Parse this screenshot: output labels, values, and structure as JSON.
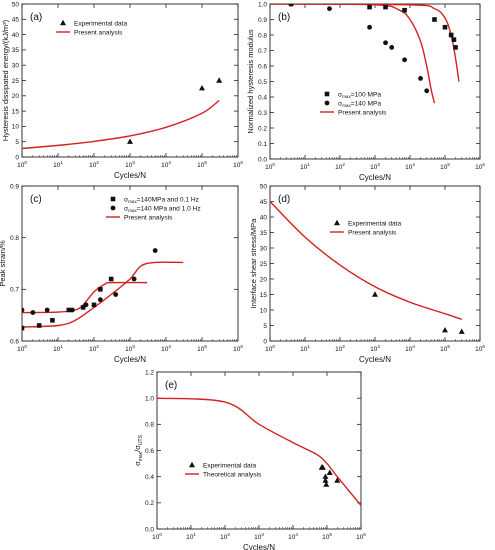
{
  "figure": {
    "panels": [
      "(a)",
      "(b)",
      "(c)",
      "(d)",
      "(e)"
    ]
  },
  "colors": {
    "theory": "#d42020",
    "marker": "#111111",
    "axis": "#222222"
  },
  "chart_data": [
    {
      "id": "a",
      "panel_label": "(a)",
      "type": "scatter",
      "xlabel": "Cycles/N",
      "ylabel": "Hysteresis dissipated energy/(kJ/m³)",
      "xscale": "log",
      "xlim": [
        1,
        1000000
      ],
      "ylim": [
        0,
        50
      ],
      "xticks": [
        1,
        10,
        100,
        1000,
        10000,
        100000,
        1000000
      ],
      "yticks": [
        0,
        5,
        10,
        15,
        20,
        25,
        30,
        35,
        40,
        45,
        50
      ],
      "legend_position": "top-left",
      "series": [
        {
          "name": "Experimental data",
          "kind": "scatter",
          "marker": "triangle",
          "x": [
            1000,
            100000,
            300000
          ],
          "y": [
            5,
            22.5,
            25
          ]
        },
        {
          "name": "Present analysis",
          "kind": "line",
          "x": [
            1,
            10,
            100,
            1000,
            10000,
            100000,
            300000
          ],
          "y": [
            2.8,
            3.8,
            5.1,
            6.9,
            9.7,
            14.3,
            18.5
          ]
        }
      ]
    },
    {
      "id": "b",
      "panel_label": "(b)",
      "type": "scatter",
      "xlabel": "Cycles/N",
      "ylabel": "Normalized hysteresis modulus",
      "xscale": "log",
      "xlim": [
        1,
        1000000
      ],
      "ylim": [
        0,
        1.0
      ],
      "xticks": [
        1,
        10,
        100,
        1000,
        10000,
        100000,
        1000000
      ],
      "yticks": [
        0,
        0.1,
        0.2,
        0.3,
        0.4,
        0.5,
        0.6,
        0.7,
        0.8,
        0.9,
        1.0
      ],
      "legend_position": "lower-center",
      "series": [
        {
          "name": "σmax=100 MPa",
          "kind": "scatter",
          "marker": "square",
          "x": [
            4,
            700,
            2000,
            7000,
            50000,
            100000,
            150000,
            180000,
            200000
          ],
          "y": [
            1.0,
            0.98,
            0.98,
            0.96,
            0.9,
            0.85,
            0.8,
            0.77,
            0.72
          ]
        },
        {
          "name": "σmax=140 MPa",
          "kind": "scatter",
          "marker": "circle",
          "x": [
            4,
            50,
            700,
            2000,
            3000,
            7000,
            20000,
            30000
          ],
          "y": [
            1.0,
            0.97,
            0.85,
            0.75,
            0.72,
            0.64,
            0.52,
            0.44
          ]
        },
        {
          "name": "Present analysis",
          "kind": "line",
          "x": [
            1,
            1000,
            5000,
            10000,
            20000,
            30000,
            40000,
            50000
          ],
          "y": [
            1.0,
            0.995,
            0.96,
            0.9,
            0.76,
            0.6,
            0.45,
            0.36
          ]
        },
        {
          "name": "",
          "kind": "line",
          "x": [
            1,
            10000,
            50000,
            100000,
            150000,
            200000,
            250000
          ],
          "y": [
            1.0,
            0.995,
            0.97,
            0.91,
            0.8,
            0.65,
            0.5
          ]
        }
      ]
    },
    {
      "id": "c",
      "panel_label": "(c)",
      "type": "scatter",
      "xlabel": "Cycles/N",
      "ylabel": "Peak strain/%",
      "xscale": "log",
      "xlim": [
        1,
        1000000
      ],
      "ylim": [
        0.6,
        0.9
      ],
      "xticks": [
        1,
        10,
        100,
        1000,
        10000,
        100000,
        1000000
      ],
      "yticks": [
        0.6,
        0.7,
        0.8,
        0.9
      ],
      "legend_position": "top-right",
      "series": [
        {
          "name": "σmax=140MPa and 0.1 Hz",
          "kind": "scatter",
          "marker": "square",
          "x": [
            1,
            3,
            7,
            20,
            50,
            100,
            150,
            300
          ],
          "y": [
            0.625,
            0.63,
            0.64,
            0.66,
            0.665,
            0.67,
            0.7,
            0.72
          ]
        },
        {
          "name": "σmax=140 MPa and 1.0 Hz",
          "kind": "scatter",
          "marker": "circle",
          "x": [
            1,
            2,
            5,
            25,
            60,
            150,
            400,
            1300,
            5000
          ],
          "y": [
            0.66,
            0.655,
            0.66,
            0.66,
            0.67,
            0.68,
            0.69,
            0.72,
            0.775
          ]
        },
        {
          "name": "Present analysis",
          "kind": "line",
          "x": [
            1,
            10,
            30,
            50,
            100,
            200,
            300,
            3000
          ],
          "y": [
            0.655,
            0.656,
            0.66,
            0.67,
            0.695,
            0.71,
            0.713,
            0.713
          ]
        },
        {
          "name": "",
          "kind": "line",
          "x": [
            1,
            10,
            30,
            100,
            300,
            1000,
            2000,
            5000,
            30000
          ],
          "y": [
            0.627,
            0.63,
            0.64,
            0.665,
            0.69,
            0.72,
            0.745,
            0.752,
            0.752
          ]
        }
      ]
    },
    {
      "id": "d",
      "panel_label": "(d)",
      "type": "scatter",
      "xlabel": "Cycles/N",
      "ylabel": "Interface shear stress/MPa",
      "xscale": "log",
      "xlim": [
        1,
        1000000
      ],
      "ylim": [
        0,
        50
      ],
      "xticks": [
        1,
        10,
        100,
        1000,
        10000,
        100000,
        1000000
      ],
      "yticks": [
        0,
        5,
        10,
        15,
        20,
        25,
        30,
        35,
        40,
        45,
        50
      ],
      "legend_position": "center-right",
      "series": [
        {
          "name": "Experimental data",
          "kind": "scatter",
          "marker": "triangle",
          "x": [
            1000,
            100000,
            300000
          ],
          "y": [
            15,
            3.5,
            3
          ]
        },
        {
          "name": "Present analysis",
          "kind": "line",
          "x": [
            1,
            10,
            100,
            1000,
            10000,
            100000,
            300000
          ],
          "y": [
            45,
            33.5,
            24.5,
            17.5,
            12.5,
            8.8,
            7
          ]
        }
      ]
    },
    {
      "id": "e",
      "panel_label": "(e)",
      "type": "scatter",
      "xlabel": "Cycles/N",
      "ylabel": "σmax/σUTS",
      "xscale": "log",
      "xlim": [
        1,
        1000000
      ],
      "ylim": [
        0,
        1.2
      ],
      "xticks": [
        1,
        10,
        100,
        1000,
        10000,
        100000,
        1000000
      ],
      "yticks": [
        0,
        0.2,
        0.4,
        0.6,
        0.8,
        1.0,
        1.2
      ],
      "legend_position": "lower-left",
      "series": [
        {
          "name": "Experimental data",
          "kind": "scatter",
          "marker": "triangle",
          "x": [
            70000,
            75000,
            90000,
            95000,
            120000,
            200000,
            90000
          ],
          "y": [
            0.47,
            0.47,
            0.37,
            0.34,
            0.43,
            0.37,
            0.4
          ]
        },
        {
          "name": "Theoretical analysis",
          "kind": "line",
          "x": [
            1,
            100,
            1000,
            10000,
            50000,
            100000,
            200000,
            1000000
          ],
          "y": [
            1.0,
            0.97,
            0.8,
            0.66,
            0.57,
            0.5,
            0.4,
            0.18
          ]
        }
      ]
    }
  ]
}
